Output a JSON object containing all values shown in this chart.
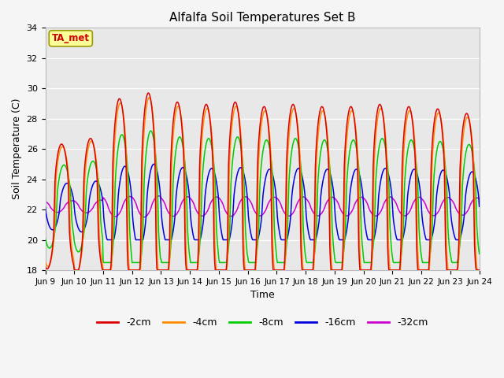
{
  "title": "Alfalfa Soil Temperatures Set B",
  "xlabel": "Time",
  "ylabel": "Soil Temperature (C)",
  "ylim": [
    18,
    34
  ],
  "colors": {
    "-2cm": "#dd0000",
    "-4cm": "#ff8c00",
    "-8cm": "#00cc00",
    "-16cm": "#0000dd",
    "-32cm": "#cc00cc"
  },
  "ta_met_box_facecolor": "#ffff99",
  "ta_met_text_color": "#cc0000",
  "ta_met_edge_color": "#999900",
  "plot_bg_color": "#e8e8e8",
  "fig_bg_color": "#f5f5f5",
  "grid_color": "#ffffff",
  "xtick_labels": [
    "Jun 9",
    "Jun 10",
    "Jun 11",
    "Jun 12",
    "Jun 13",
    "Jun 14",
    "Jun 15",
    "Jun 16",
    "Jun 17",
    "Jun 18",
    "Jun 19",
    "Jun 20",
    "Jun 21",
    "Jun 22",
    "Jun 23",
    "Jun 24"
  ],
  "linewidth": 1.1,
  "n_days": 15
}
